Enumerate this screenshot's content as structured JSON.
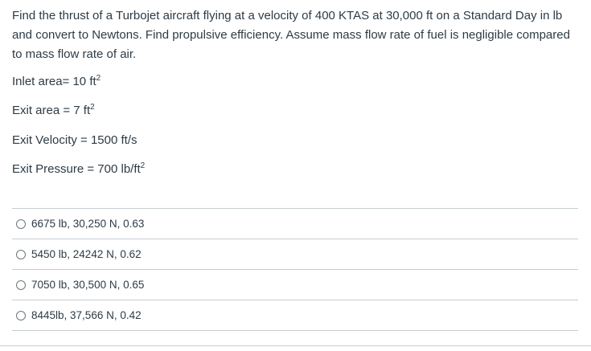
{
  "question": {
    "text": "Find the thrust of a Turbojet aircraft flying at a velocity of 400 KTAS at 30,000 ft on a Standard Day in lb and convert to Newtons. Find propulsive efficiency. Assume mass flow rate of fuel is negligible compared to mass flow rate of air.",
    "given": [
      {
        "label": "Inlet area= 10 ft",
        "sup": "2"
      },
      {
        "label": "Exit area = 7 ft",
        "sup": "2"
      },
      {
        "label": "Exit Velocity = 1500 ft/s",
        "sup": ""
      },
      {
        "label": "Exit Pressure = 700 lb/ft",
        "sup": "2"
      }
    ]
  },
  "answers": [
    {
      "label": "6675 lb, 30,250 N, 0.63",
      "selected": false
    },
    {
      "label": "5450 lb, 24242 N, 0.62",
      "selected": false
    },
    {
      "label": "7050 lb, 30,500 N, 0.65",
      "selected": false
    },
    {
      "label": "8445lb, 37,566 N, 0.42",
      "selected": false
    }
  ]
}
